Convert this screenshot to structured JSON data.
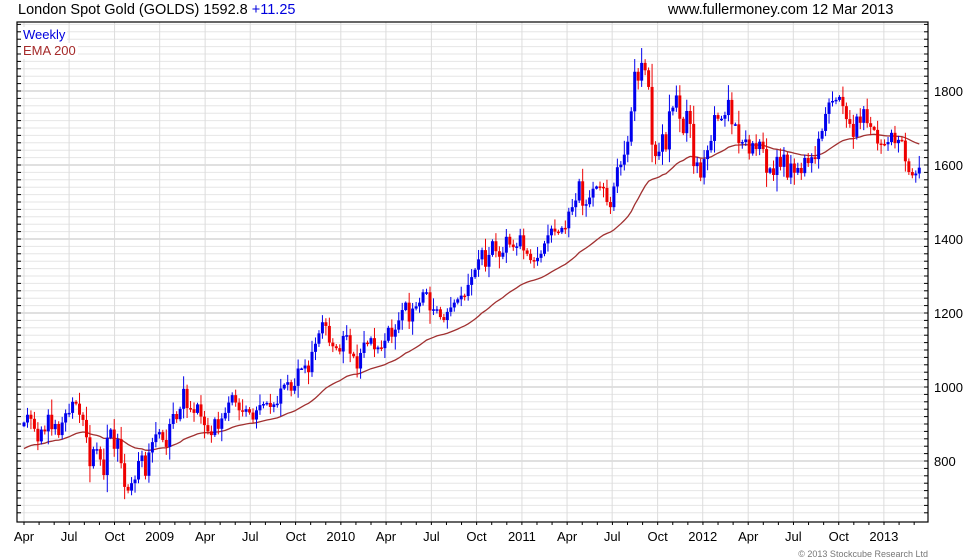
{
  "header": {
    "title": "London Spot Gold (GOLDS) 1592.8",
    "change": "+11.25",
    "site": "www.fullermoney.com",
    "date": "12 Mar 2013"
  },
  "legend": {
    "period": "Weekly",
    "indicator": "EMA 200"
  },
  "footer": {
    "copyright": "© 2013 Stockcube Research Ltd"
  },
  "colors": {
    "up": "#0000ee",
    "down": "#ee0000",
    "ema": "#a03030",
    "grid_minor": "#e6e6e6",
    "grid_major": "#c0c0c0"
  },
  "chart_data": {
    "type": "candlestick",
    "title": "London Spot Gold (GOLDS)",
    "interval": "weekly",
    "first_week": "2008-04-04",
    "ylim": [
      635,
      1985
    ],
    "y_ticks": [
      800,
      1000,
      1200,
      1400,
      1600,
      1800
    ],
    "x_ticks": [
      {
        "label": "Apr",
        "week": 0
      },
      {
        "label": "Jul",
        "week": 13
      },
      {
        "label": "Oct",
        "week": 26.1
      },
      {
        "label": "2009",
        "week": 39.1
      },
      {
        "label": "Apr",
        "week": 52.2
      },
      {
        "label": "Jul",
        "week": 65.2
      },
      {
        "label": "Oct",
        "week": 78.3
      },
      {
        "label": "2010",
        "week": 91.3
      },
      {
        "label": "Apr",
        "week": 104.3
      },
      {
        "label": "Jul",
        "week": 117.4
      },
      {
        "label": "Oct",
        "week": 130.4
      },
      {
        "label": "2011",
        "week": 143.5
      },
      {
        "label": "Apr",
        "week": 156.5
      },
      {
        "label": "Jul",
        "week": 169.5
      },
      {
        "label": "Oct",
        "week": 182.6
      },
      {
        "label": "2012",
        "week": 195.6
      },
      {
        "label": "Apr",
        "week": 208.7
      },
      {
        "label": "Jul",
        "week": 221.7
      },
      {
        "label": "Oct",
        "week": 234.8
      },
      {
        "label": "2013",
        "week": 247.8
      }
    ],
    "ema": {
      "label": "EMA 200",
      "start_value": 830,
      "period_weeks": 40
    },
    "close": [
      904,
      925,
      914,
      887,
      853,
      885,
      880,
      925,
      886,
      900,
      870,
      904,
      929,
      930,
      960,
      955,
      925,
      911,
      864,
      786,
      832,
      832,
      804,
      762,
      863,
      885,
      833,
      859,
      794,
      730,
      720,
      740,
      750,
      800,
      815,
      760,
      823,
      851,
      872,
      878,
      857,
      838,
      900,
      927,
      913,
      941,
      995,
      943,
      940,
      930,
      953,
      920,
      897,
      880,
      870,
      913,
      887,
      915,
      930,
      958,
      978,
      958,
      937,
      933,
      940,
      931,
      912,
      937,
      951,
      954,
      957,
      946,
      953,
      955,
      996,
      1006,
      1013,
      990,
      1003,
      1050,
      1050,
      1058,
      1040,
      1095,
      1117,
      1145,
      1175,
      1165,
      1120,
      1110,
      1105,
      1096,
      1138,
      1140,
      1090,
      1083,
      1050,
      1092,
      1120,
      1117,
      1132,
      1102,
      1107,
      1105,
      1125,
      1160,
      1136,
      1155,
      1180,
      1208,
      1228,
      1177,
      1212,
      1218,
      1228,
      1256,
      1256,
      1207,
      1210,
      1210,
      1189,
      1181,
      1203,
      1215,
      1228,
      1237,
      1247,
      1246,
      1276,
      1297,
      1317,
      1345,
      1370,
      1325,
      1357,
      1394,
      1367,
      1352,
      1363,
      1406,
      1385,
      1378,
      1380,
      1410,
      1369,
      1360,
      1343,
      1340,
      1349,
      1360,
      1388,
      1410,
      1428,
      1420,
      1418,
      1430,
      1429,
      1474,
      1486,
      1504,
      1556,
      1490,
      1494,
      1512,
      1536,
      1542,
      1541,
      1538,
      1500,
      1486,
      1542,
      1594,
      1601,
      1628,
      1663,
      1745,
      1852,
      1828,
      1876,
      1856,
      1811,
      1655,
      1624,
      1636,
      1683,
      1642,
      1745,
      1755,
      1788,
      1725,
      1686,
      1746,
      1711,
      1597,
      1607,
      1566,
      1616,
      1640,
      1665,
      1735,
      1725,
      1725,
      1735,
      1776,
      1710,
      1710,
      1659,
      1662,
      1669,
      1631,
      1659,
      1643,
      1663,
      1643,
      1579,
      1591,
      1573,
      1622,
      1595,
      1628,
      1566,
      1604,
      1579,
      1592,
      1578,
      1619,
      1605,
      1621,
      1616,
      1671,
      1692,
      1738,
      1769,
      1773,
      1776,
      1784,
      1759,
      1724,
      1711,
      1676,
      1731,
      1714,
      1751,
      1713,
      1703,
      1695,
      1658,
      1657,
      1656,
      1662,
      1687,
      1659,
      1668,
      1666,
      1610,
      1581,
      1572,
      1577,
      1592.8
    ]
  }
}
